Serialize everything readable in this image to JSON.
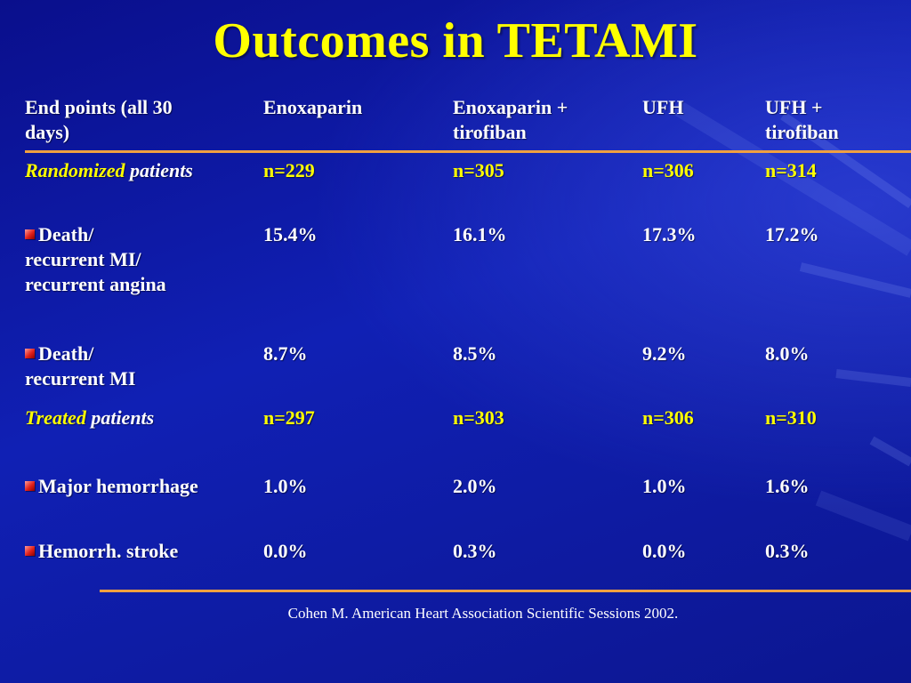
{
  "slide": {
    "title": "Outcomes in TETAMI",
    "citation": "Cohen M. American Heart Association Scientific Sessions 2002."
  },
  "colors": {
    "background": "#1020b4",
    "title": "#ffff00",
    "accent_rule": "#f0a040",
    "bullet": "#e0201a"
  },
  "table": {
    "headers": {
      "endpoint": [
        "End points (all 30",
        "days)"
      ],
      "col1": [
        "Enoxaparin"
      ],
      "col2": [
        "Enoxaparin +",
        "tirofiban"
      ],
      "col3": [
        "UFH"
      ],
      "col4": [
        "UFH +",
        "tirofiban"
      ]
    },
    "randomized": {
      "label_italic": "Randomized",
      "label_rest": "patients",
      "values": [
        "n=229",
        "n=305",
        "n=306",
        "n=314"
      ]
    },
    "row_death_mi_angina": {
      "label": [
        "Death/",
        "recurrent MI/",
        "recurrent angina"
      ],
      "values": [
        "15.4%",
        "16.1%",
        "17.3%",
        "17.2%"
      ]
    },
    "row_death_mi": {
      "label": [
        "Death/",
        "recurrent MI"
      ],
      "values": [
        "8.7%",
        "8.5%",
        "9.2%",
        "8.0%"
      ]
    },
    "treated": {
      "label_italic": "Treated",
      "label_rest": "patients",
      "values": [
        "n=297",
        "n=303",
        "n=306",
        "n=310"
      ]
    },
    "row_major_hemorrhage": {
      "label": "Major hemorrhage",
      "values": [
        "1.0%",
        "2.0%",
        "1.0%",
        "1.6%"
      ]
    },
    "row_hemorrh_stroke": {
      "label": "Hemorrh. stroke",
      "values": [
        "0.0%",
        "0.3%",
        "0.0%",
        "0.3%"
      ]
    }
  }
}
